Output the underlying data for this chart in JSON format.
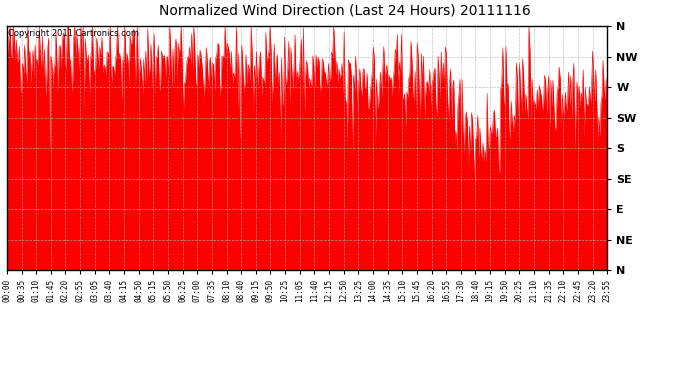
{
  "title": "Normalized Wind Direction (Last 24 Hours) 20111116",
  "copyright_text": "Copyright 2011 Cartronics.com",
  "line_color": "#ff0000",
  "background_color": "#ffffff",
  "grid_color": "#b0b0b0",
  "y_labels": [
    "N",
    "NW",
    "W",
    "SW",
    "S",
    "SE",
    "E",
    "NE",
    "N"
  ],
  "y_values": [
    8,
    7,
    6,
    5,
    4,
    3,
    2,
    1,
    0
  ],
  "y_min": 0,
  "y_max": 8,
  "x_tick_labels": [
    "00:00",
    "00:35",
    "01:10",
    "01:45",
    "02:20",
    "02:55",
    "03:05",
    "03:40",
    "04:15",
    "04:50",
    "05:15",
    "05:50",
    "06:25",
    "07:00",
    "07:35",
    "08:10",
    "08:40",
    "09:15",
    "09:50",
    "10:25",
    "11:05",
    "11:40",
    "12:15",
    "12:50",
    "13:25",
    "14:00",
    "14:35",
    "15:10",
    "15:45",
    "16:20",
    "16:55",
    "17:30",
    "18:40",
    "19:15",
    "19:50",
    "20:25",
    "21:10",
    "21:35",
    "22:10",
    "22:45",
    "23:20",
    "23:55"
  ],
  "seed": 42,
  "n_points": 576
}
